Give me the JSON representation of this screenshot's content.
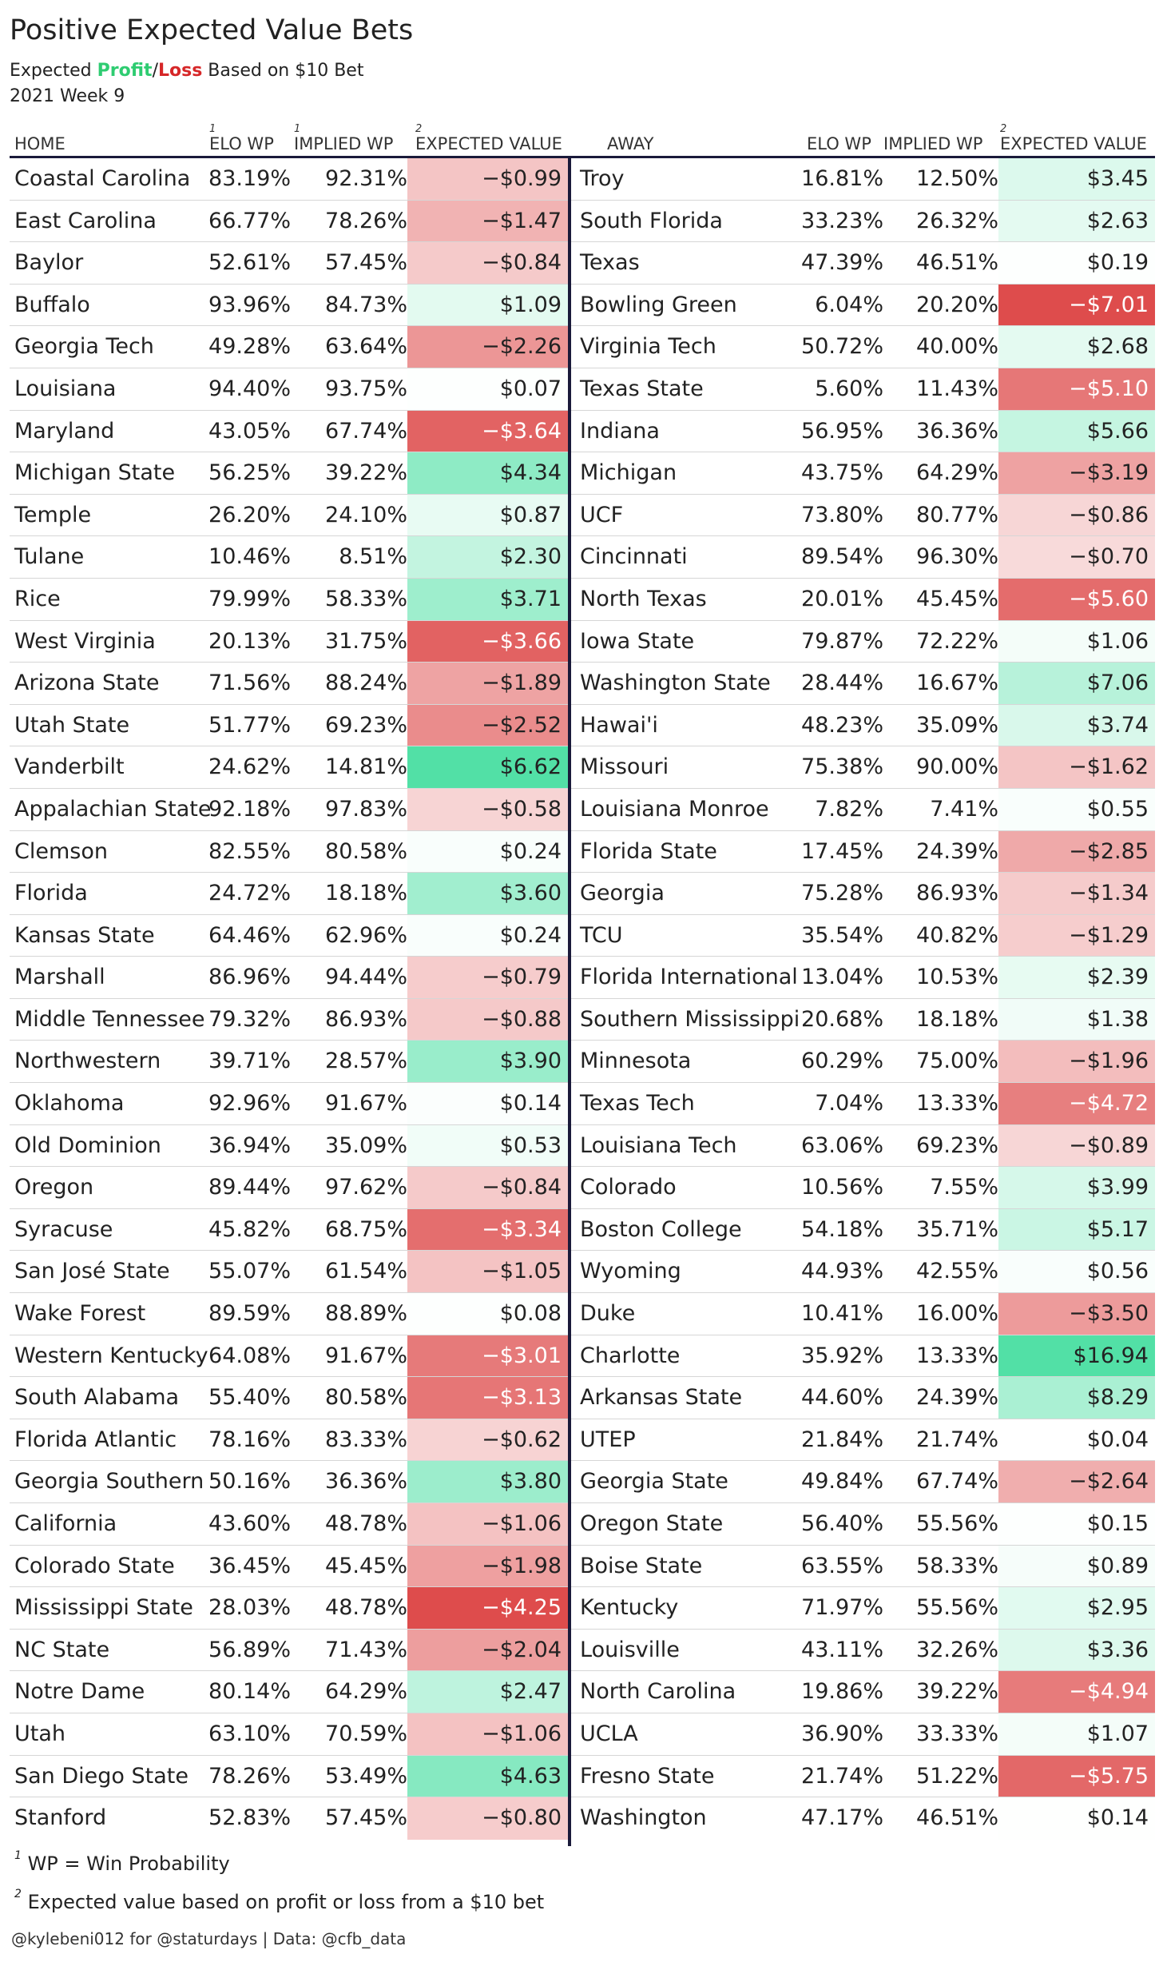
{
  "title": "Positive Expected Value Bets",
  "subtitle": {
    "prefix": "Expected ",
    "profit": "Profit",
    "slash": "/",
    "loss": "Loss",
    "suffix": " Based on $10 Bet",
    "profit_color": "#2ecc71",
    "loss_color": "#d62728"
  },
  "week": "2021 Week 9",
  "headers": {
    "home": "HOME",
    "home_elo": "ELO WP",
    "home_elo_sup": "1",
    "home_implied": "IMPLIED WP",
    "home_implied_sup": "1",
    "home_ev": "EXPECTED VALUE",
    "home_ev_sup": "2",
    "away": "AWAY",
    "away_elo": "ELO WP",
    "away_implied": "IMPLIED WP",
    "away_ev": "EXPECTED VALUE",
    "away_ev_sup": "2"
  },
  "rows": [
    {
      "home": "Coastal Carolina",
      "home_elo": "83.19%",
      "home_implied": "92.31%",
      "home_ev": "−$0.99",
      "home_ev_value": -0.99,
      "away": "Troy",
      "away_elo": "16.81%",
      "away_implied": "12.50%",
      "away_ev": "$3.45",
      "away_ev_value": 3.45
    },
    {
      "home": "East Carolina",
      "home_elo": "66.77%",
      "home_implied": "78.26%",
      "home_ev": "−$1.47",
      "home_ev_value": -1.47,
      "away": "South Florida",
      "away_elo": "33.23%",
      "away_implied": "26.32%",
      "away_ev": "$2.63",
      "away_ev_value": 2.63
    },
    {
      "home": "Baylor",
      "home_elo": "52.61%",
      "home_implied": "57.45%",
      "home_ev": "−$0.84",
      "home_ev_value": -0.84,
      "away": "Texas",
      "away_elo": "47.39%",
      "away_implied": "46.51%",
      "away_ev": "$0.19",
      "away_ev_value": 0.19
    },
    {
      "home": "Buffalo",
      "home_elo": "93.96%",
      "home_implied": "84.73%",
      "home_ev": "$1.09",
      "home_ev_value": 1.09,
      "away": "Bowling Green",
      "away_elo": "6.04%",
      "away_implied": "20.20%",
      "away_ev": "−$7.01",
      "away_ev_value": -7.01
    },
    {
      "home": "Georgia Tech",
      "home_elo": "49.28%",
      "home_implied": "63.64%",
      "home_ev": "−$2.26",
      "home_ev_value": -2.26,
      "away": "Virginia Tech",
      "away_elo": "50.72%",
      "away_implied": "40.00%",
      "away_ev": "$2.68",
      "away_ev_value": 2.68
    },
    {
      "home": "Louisiana",
      "home_elo": "94.40%",
      "home_implied": "93.75%",
      "home_ev": "$0.07",
      "home_ev_value": 0.07,
      "away": "Texas State",
      "away_elo": "5.60%",
      "away_implied": "11.43%",
      "away_ev": "−$5.10",
      "away_ev_value": -5.1
    },
    {
      "home": "Maryland",
      "home_elo": "43.05%",
      "home_implied": "67.74%",
      "home_ev": "−$3.64",
      "home_ev_value": -3.64,
      "away": "Indiana",
      "away_elo": "56.95%",
      "away_implied": "36.36%",
      "away_ev": "$5.66",
      "away_ev_value": 5.66
    },
    {
      "home": "Michigan State",
      "home_elo": "56.25%",
      "home_implied": "39.22%",
      "home_ev": "$4.34",
      "home_ev_value": 4.34,
      "away": "Michigan",
      "away_elo": "43.75%",
      "away_implied": "64.29%",
      "away_ev": "−$3.19",
      "away_ev_value": -3.19
    },
    {
      "home": "Temple",
      "home_elo": "26.20%",
      "home_implied": "24.10%",
      "home_ev": "$0.87",
      "home_ev_value": 0.87,
      "away": "UCF",
      "away_elo": "73.80%",
      "away_implied": "80.77%",
      "away_ev": "−$0.86",
      "away_ev_value": -0.86
    },
    {
      "home": "Tulane",
      "home_elo": "10.46%",
      "home_implied": "8.51%",
      "home_ev": "$2.30",
      "home_ev_value": 2.3,
      "away": "Cincinnati",
      "away_elo": "89.54%",
      "away_implied": "96.30%",
      "away_ev": "−$0.70",
      "away_ev_value": -0.7
    },
    {
      "home": "Rice",
      "home_elo": "79.99%",
      "home_implied": "58.33%",
      "home_ev": "$3.71",
      "home_ev_value": 3.71,
      "away": "North Texas",
      "away_elo": "20.01%",
      "away_implied": "45.45%",
      "away_ev": "−$5.60",
      "away_ev_value": -5.6
    },
    {
      "home": "West Virginia",
      "home_elo": "20.13%",
      "home_implied": "31.75%",
      "home_ev": "−$3.66",
      "home_ev_value": -3.66,
      "away": "Iowa State",
      "away_elo": "79.87%",
      "away_implied": "72.22%",
      "away_ev": "$1.06",
      "away_ev_value": 1.06
    },
    {
      "home": "Arizona State",
      "home_elo": "71.56%",
      "home_implied": "88.24%",
      "home_ev": "−$1.89",
      "home_ev_value": -1.89,
      "away": "Washington State",
      "away_elo": "28.44%",
      "away_implied": "16.67%",
      "away_ev": "$7.06",
      "away_ev_value": 7.06
    },
    {
      "home": "Utah State",
      "home_elo": "51.77%",
      "home_implied": "69.23%",
      "home_ev": "−$2.52",
      "home_ev_value": -2.52,
      "away": "Hawai'i",
      "away_elo": "48.23%",
      "away_implied": "35.09%",
      "away_ev": "$3.74",
      "away_ev_value": 3.74
    },
    {
      "home": "Vanderbilt",
      "home_elo": "24.62%",
      "home_implied": "14.81%",
      "home_ev": "$6.62",
      "home_ev_value": 6.62,
      "away": "Missouri",
      "away_elo": "75.38%",
      "away_implied": "90.00%",
      "away_ev": "−$1.62",
      "away_ev_value": -1.62
    },
    {
      "home": "Appalachian State",
      "home_elo": "92.18%",
      "home_implied": "97.83%",
      "home_ev": "−$0.58",
      "home_ev_value": -0.58,
      "away": "Louisiana Monroe",
      "away_elo": "7.82%",
      "away_implied": "7.41%",
      "away_ev": "$0.55",
      "away_ev_value": 0.55
    },
    {
      "home": "Clemson",
      "home_elo": "82.55%",
      "home_implied": "80.58%",
      "home_ev": "$0.24",
      "home_ev_value": 0.24,
      "away": "Florida State",
      "away_elo": "17.45%",
      "away_implied": "24.39%",
      "away_ev": "−$2.85",
      "away_ev_value": -2.85
    },
    {
      "home": "Florida",
      "home_elo": "24.72%",
      "home_implied": "18.18%",
      "home_ev": "$3.60",
      "home_ev_value": 3.6,
      "away": "Georgia",
      "away_elo": "75.28%",
      "away_implied": "86.93%",
      "away_ev": "−$1.34",
      "away_ev_value": -1.34
    },
    {
      "home": "Kansas State",
      "home_elo": "64.46%",
      "home_implied": "62.96%",
      "home_ev": "$0.24",
      "home_ev_value": 0.24,
      "away": "TCU",
      "away_elo": "35.54%",
      "away_implied": "40.82%",
      "away_ev": "−$1.29",
      "away_ev_value": -1.29
    },
    {
      "home": "Marshall",
      "home_elo": "86.96%",
      "home_implied": "94.44%",
      "home_ev": "−$0.79",
      "home_ev_value": -0.79,
      "away": "Florida International",
      "away_elo": "13.04%",
      "away_implied": "10.53%",
      "away_ev": "$2.39",
      "away_ev_value": 2.39
    },
    {
      "home": "Middle Tennessee",
      "home_elo": "79.32%",
      "home_implied": "86.93%",
      "home_ev": "−$0.88",
      "home_ev_value": -0.88,
      "away": "Southern Mississippi",
      "away_elo": "20.68%",
      "away_implied": "18.18%",
      "away_ev": "$1.38",
      "away_ev_value": 1.38
    },
    {
      "home": "Northwestern",
      "home_elo": "39.71%",
      "home_implied": "28.57%",
      "home_ev": "$3.90",
      "home_ev_value": 3.9,
      "away": "Minnesota",
      "away_elo": "60.29%",
      "away_implied": "75.00%",
      "away_ev": "−$1.96",
      "away_ev_value": -1.96
    },
    {
      "home": "Oklahoma",
      "home_elo": "92.96%",
      "home_implied": "91.67%",
      "home_ev": "$0.14",
      "home_ev_value": 0.14,
      "away": "Texas Tech",
      "away_elo": "7.04%",
      "away_implied": "13.33%",
      "away_ev": "−$4.72",
      "away_ev_value": -4.72
    },
    {
      "home": "Old Dominion",
      "home_elo": "36.94%",
      "home_implied": "35.09%",
      "home_ev": "$0.53",
      "home_ev_value": 0.53,
      "away": "Louisiana Tech",
      "away_elo": "63.06%",
      "away_implied": "69.23%",
      "away_ev": "−$0.89",
      "away_ev_value": -0.89
    },
    {
      "home": "Oregon",
      "home_elo": "89.44%",
      "home_implied": "97.62%",
      "home_ev": "−$0.84",
      "home_ev_value": -0.84,
      "away": "Colorado",
      "away_elo": "10.56%",
      "away_implied": "7.55%",
      "away_ev": "$3.99",
      "away_ev_value": 3.99
    },
    {
      "home": "Syracuse",
      "home_elo": "45.82%",
      "home_implied": "68.75%",
      "home_ev": "−$3.34",
      "home_ev_value": -3.34,
      "away": "Boston College",
      "away_elo": "54.18%",
      "away_implied": "35.71%",
      "away_ev": "$5.17",
      "away_ev_value": 5.17
    },
    {
      "home": "San José State",
      "home_elo": "55.07%",
      "home_implied": "61.54%",
      "home_ev": "−$1.05",
      "home_ev_value": -1.05,
      "away": "Wyoming",
      "away_elo": "44.93%",
      "away_implied": "42.55%",
      "away_ev": "$0.56",
      "away_ev_value": 0.56
    },
    {
      "home": "Wake Forest",
      "home_elo": "89.59%",
      "home_implied": "88.89%",
      "home_ev": "$0.08",
      "home_ev_value": 0.08,
      "away": "Duke",
      "away_elo": "10.41%",
      "away_implied": "16.00%",
      "away_ev": "−$3.50",
      "away_ev_value": -3.5
    },
    {
      "home": "Western Kentucky",
      "home_elo": "64.08%",
      "home_implied": "91.67%",
      "home_ev": "−$3.01",
      "home_ev_value": -3.01,
      "away": "Charlotte",
      "away_elo": "35.92%",
      "away_implied": "13.33%",
      "away_ev": "$16.94",
      "away_ev_value": 16.94
    },
    {
      "home": "South Alabama",
      "home_elo": "55.40%",
      "home_implied": "80.58%",
      "home_ev": "−$3.13",
      "home_ev_value": -3.13,
      "away": "Arkansas State",
      "away_elo": "44.60%",
      "away_implied": "24.39%",
      "away_ev": "$8.29",
      "away_ev_value": 8.29
    },
    {
      "home": "Florida Atlantic",
      "home_elo": "78.16%",
      "home_implied": "83.33%",
      "home_ev": "−$0.62",
      "home_ev_value": -0.62,
      "away": "UTEP",
      "away_elo": "21.84%",
      "away_implied": "21.74%",
      "away_ev": "$0.04",
      "away_ev_value": 0.04
    },
    {
      "home": "Georgia Southern",
      "home_elo": "50.16%",
      "home_implied": "36.36%",
      "home_ev": "$3.80",
      "home_ev_value": 3.8,
      "away": "Georgia State",
      "away_elo": "49.84%",
      "away_implied": "67.74%",
      "away_ev": "−$2.64",
      "away_ev_value": -2.64
    },
    {
      "home": "California",
      "home_elo": "43.60%",
      "home_implied": "48.78%",
      "home_ev": "−$1.06",
      "home_ev_value": -1.06,
      "away": "Oregon State",
      "away_elo": "56.40%",
      "away_implied": "55.56%",
      "away_ev": "$0.15",
      "away_ev_value": 0.15
    },
    {
      "home": "Colorado State",
      "home_elo": "36.45%",
      "home_implied": "45.45%",
      "home_ev": "−$1.98",
      "home_ev_value": -1.98,
      "away": "Boise State",
      "away_elo": "63.55%",
      "away_implied": "58.33%",
      "away_ev": "$0.89",
      "away_ev_value": 0.89
    },
    {
      "home": "Mississippi State",
      "home_elo": "28.03%",
      "home_implied": "48.78%",
      "home_ev": "−$4.25",
      "home_ev_value": -4.25,
      "away": "Kentucky",
      "away_elo": "71.97%",
      "away_implied": "55.56%",
      "away_ev": "$2.95",
      "away_ev_value": 2.95
    },
    {
      "home": "NC State",
      "home_elo": "56.89%",
      "home_implied": "71.43%",
      "home_ev": "−$2.04",
      "home_ev_value": -2.04,
      "away": "Louisville",
      "away_elo": "43.11%",
      "away_implied": "32.26%",
      "away_ev": "$3.36",
      "away_ev_value": 3.36
    },
    {
      "home": "Notre Dame",
      "home_elo": "80.14%",
      "home_implied": "64.29%",
      "home_ev": "$2.47",
      "home_ev_value": 2.47,
      "away": "North Carolina",
      "away_elo": "19.86%",
      "away_implied": "39.22%",
      "away_ev": "−$4.94",
      "away_ev_value": -4.94
    },
    {
      "home": "Utah",
      "home_elo": "63.10%",
      "home_implied": "70.59%",
      "home_ev": "−$1.06",
      "home_ev_value": -1.06,
      "away": "UCLA",
      "away_elo": "36.90%",
      "away_implied": "33.33%",
      "away_ev": "$1.07",
      "away_ev_value": 1.07
    },
    {
      "home": "San Diego State",
      "home_elo": "78.26%",
      "home_implied": "53.49%",
      "home_ev": "$4.63",
      "home_ev_value": 4.63,
      "away": "Fresno State",
      "away_elo": "21.74%",
      "away_implied": "51.22%",
      "away_ev": "−$5.75",
      "away_ev_value": -5.75
    },
    {
      "home": "Stanford",
      "home_elo": "52.83%",
      "home_implied": "57.45%",
      "home_ev": "−$0.80",
      "home_ev_value": -0.8,
      "away": "Washington",
      "away_elo": "47.17%",
      "away_implied": "46.51%",
      "away_ev": "$0.14",
      "away_ev_value": 0.14
    }
  ],
  "home_color_scale": {
    "neg_max": 4.25,
    "pos_max": 6.62
  },
  "away_color_scale": {
    "neg_max": 7.01,
    "pos_max": 16.94
  },
  "colors": {
    "negative": "#de4c4c",
    "positive": "#52e0a6",
    "neutral": "#ffffff",
    "divider": "#1a1a3a"
  },
  "footnotes": {
    "fn1_sup": "1",
    "fn1": "WP = Win Probability",
    "fn2_sup": "2",
    "fn2": "Expected value based on profit or loss from a $10 bet"
  },
  "credit": "@kylebeni012 for @staturdays | Data: @cfb_data"
}
